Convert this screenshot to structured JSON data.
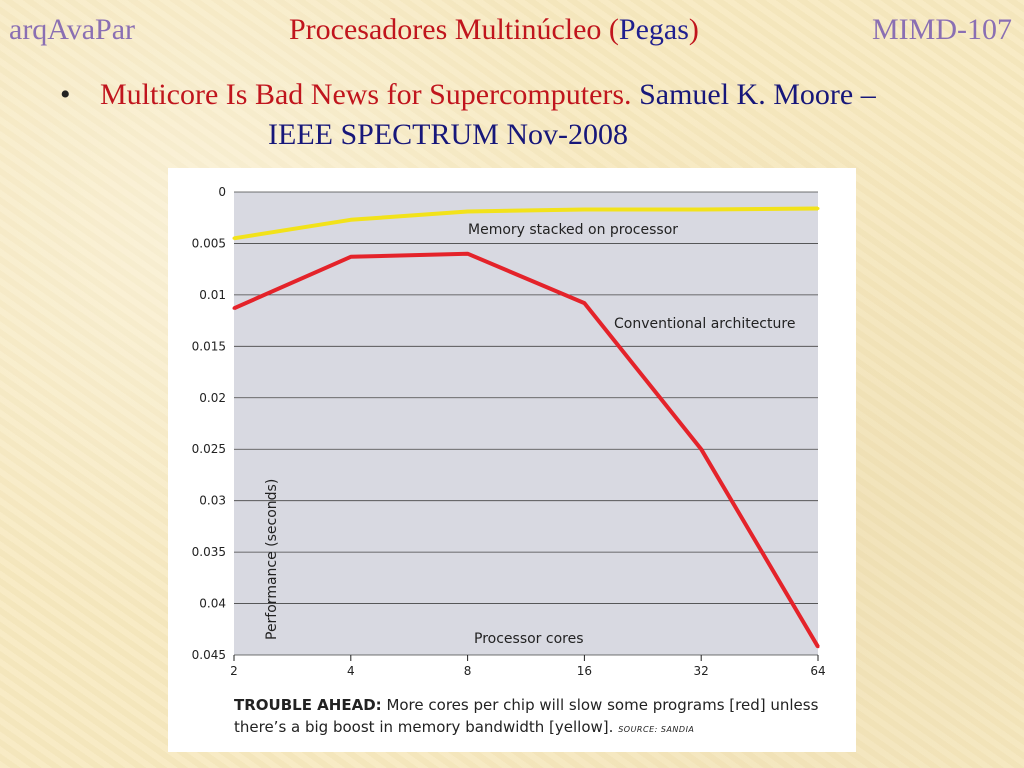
{
  "header": {
    "left": "arqAvaPar",
    "center_prefix": "Procesadores Multinúcleo (",
    "center_highlight": "Pegas",
    "center_suffix": ")",
    "right": "MIMD-107"
  },
  "bullet": {
    "marker": "•",
    "title": "Multicore Is Bad News for Supercomputers.",
    "author": "Samuel K. Moore –",
    "source": "IEEE SPECTRUM Nov-2008"
  },
  "colors": {
    "header_side": "#8a6fb3",
    "title_red": "#c0151d",
    "author_blue": "#17177a",
    "plot_bg": "#d8d9e1",
    "conventional": "#e4232a",
    "stacked": "#f2e21a"
  },
  "chart_data": {
    "type": "line",
    "x": [
      2,
      4,
      8,
      16,
      32,
      64
    ],
    "x_scale": "log2",
    "xlabel": "Processor cores",
    "ylabel": "Performance (seconds)",
    "y_inverted": true,
    "ylim": [
      0,
      0.045
    ],
    "yticks": [
      "0",
      "0.005",
      "0.01",
      "0.015",
      "0.02",
      "0.025",
      "0.03",
      "0.035",
      "0.04",
      "0.045"
    ],
    "xticks": [
      "2",
      "4",
      "8",
      "16",
      "32",
      "64"
    ],
    "grid": true,
    "series": [
      {
        "name": "Memory stacked on processor",
        "color": "#f2e21a",
        "values": [
          0.0045,
          0.0027,
          0.0019,
          0.0017,
          0.0017,
          0.0016
        ]
      },
      {
        "name": "Conventional architecture",
        "color": "#e4232a",
        "values": [
          0.0113,
          0.0063,
          0.006,
          0.0108,
          0.025,
          0.0442
        ]
      }
    ],
    "caption_bold": "TROUBLE AHEAD:",
    "caption_text": "More cores per chip will slow some programs [red] unless there’s a big boost in memory bandwidth [yellow].",
    "caption_source": "SOURCE: SANDIA"
  }
}
